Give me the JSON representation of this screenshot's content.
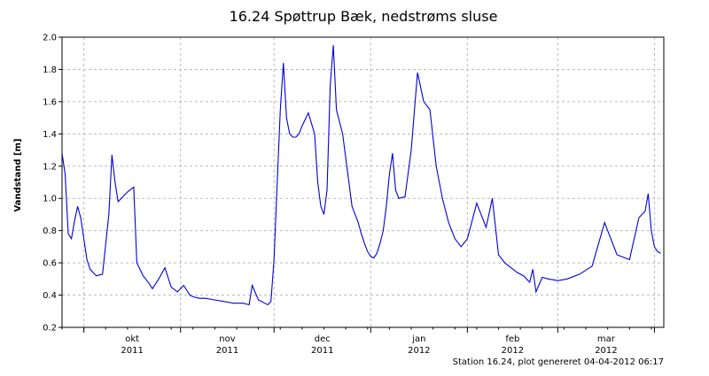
{
  "chart_data": {
    "type": "line",
    "title": "16.24 Spøttrup Bæk, nedstrøms sluse",
    "xlabel": "",
    "ylabel": "Vandstand [m]",
    "ylim": [
      0.2,
      2.0
    ],
    "yticks": [
      "0.2",
      "0.4",
      "0.6",
      "0.8",
      "1.0",
      "1.2",
      "1.4",
      "1.6",
      "1.8",
      "2.0"
    ],
    "xlim": [
      "2011-09-24",
      "2012-04-04"
    ],
    "grid": true,
    "x_labels": [
      {
        "month": "okt",
        "year": "2011"
      },
      {
        "month": "nov",
        "year": "2011"
      },
      {
        "month": "dec",
        "year": "2011"
      },
      {
        "month": "jan",
        "year": "2012"
      },
      {
        "month": "feb",
        "year": "2012"
      },
      {
        "month": "mar",
        "year": "2012"
      }
    ],
    "series_color": "#0000dd",
    "series": [
      {
        "x": [
          "2011-09-24",
          "2011-09-25",
          "2011-09-26",
          "2011-09-27",
          "2011-09-28",
          "2011-09-29",
          "2011-09-30",
          "2011-10-01",
          "2011-10-02",
          "2011-10-03",
          "2011-10-05",
          "2011-10-07",
          "2011-10-09",
          "2011-10-10",
          "2011-10-11",
          "2011-10-12",
          "2011-10-13",
          "2011-10-15",
          "2011-10-17",
          "2011-10-18",
          "2011-10-20",
          "2011-10-22",
          "2011-10-23",
          "2011-10-25",
          "2011-10-27",
          "2011-10-29",
          "2011-10-31",
          "2011-11-02",
          "2011-11-04",
          "2011-11-05",
          "2011-11-07",
          "2011-11-09",
          "2011-11-12",
          "2011-11-15",
          "2011-11-18",
          "2011-11-21",
          "2011-11-23",
          "2011-11-24",
          "2011-11-26",
          "2011-11-27",
          "2011-11-28",
          "2011-11-29",
          "2011-11-30",
          "2011-12-01",
          "2011-12-02",
          "2011-12-03",
          "2011-12-04",
          "2011-12-05",
          "2011-12-06",
          "2011-12-07",
          "2011-12-08",
          "2011-12-09",
          "2011-12-10",
          "2011-12-12",
          "2011-12-14",
          "2011-12-15",
          "2011-12-16",
          "2011-12-17",
          "2011-12-18",
          "2011-12-19",
          "2011-12-20",
          "2011-12-21",
          "2011-12-23",
          "2011-12-25",
          "2011-12-26",
          "2011-12-28",
          "2011-12-29",
          "2011-12-30",
          "2011-12-31",
          "2012-01-01",
          "2012-01-02",
          "2012-01-03",
          "2012-01-04",
          "2012-01-05",
          "2012-01-06",
          "2012-01-07",
          "2012-01-08",
          "2012-01-09",
          "2012-01-10",
          "2012-01-12",
          "2012-01-14",
          "2012-01-16",
          "2012-01-18",
          "2012-01-20",
          "2012-01-22",
          "2012-01-24",
          "2012-01-26",
          "2012-01-28",
          "2012-01-30",
          "2012-02-01",
          "2012-02-04",
          "2012-02-07",
          "2012-02-09",
          "2012-02-11",
          "2012-02-13",
          "2012-02-15",
          "2012-02-17",
          "2012-02-19",
          "2012-02-21",
          "2012-02-22",
          "2012-02-23",
          "2012-02-25",
          "2012-02-27",
          "2012-03-01",
          "2012-03-04",
          "2012-03-08",
          "2012-03-12",
          "2012-03-16",
          "2012-03-20",
          "2012-03-24",
          "2012-03-27",
          "2012-03-29",
          "2012-03-30",
          "2012-03-31",
          "2012-04-01",
          "2012-04-02",
          "2012-04-03"
        ],
        "y": [
          1.28,
          1.15,
          0.78,
          0.75,
          0.86,
          0.95,
          0.88,
          0.75,
          0.62,
          0.56,
          0.52,
          0.53,
          0.9,
          1.27,
          1.1,
          0.98,
          1.0,
          1.04,
          1.07,
          0.6,
          0.52,
          0.47,
          0.44,
          0.5,
          0.57,
          0.45,
          0.42,
          0.46,
          0.4,
          0.39,
          0.38,
          0.38,
          0.37,
          0.36,
          0.35,
          0.35,
          0.34,
          0.46,
          0.37,
          0.36,
          0.35,
          0.34,
          0.36,
          0.62,
          1.1,
          1.55,
          1.84,
          1.5,
          1.4,
          1.38,
          1.38,
          1.4,
          1.45,
          1.53,
          1.4,
          1.1,
          0.95,
          0.9,
          1.05,
          1.7,
          1.95,
          1.55,
          1.4,
          1.1,
          0.95,
          0.85,
          0.78,
          0.72,
          0.67,
          0.64,
          0.63,
          0.66,
          0.72,
          0.8,
          0.95,
          1.15,
          1.28,
          1.05,
          1.0,
          1.01,
          1.3,
          1.78,
          1.6,
          1.55,
          1.2,
          1.0,
          0.85,
          0.75,
          0.7,
          0.75,
          0.97,
          0.82,
          1.0,
          0.65,
          0.6,
          0.57,
          0.54,
          0.52,
          0.48,
          0.56,
          0.42,
          0.51,
          0.5,
          0.49,
          0.5,
          0.53,
          0.58,
          0.85,
          0.65,
          0.62,
          0.88,
          0.92,
          1.03,
          0.8,
          0.7,
          0.67,
          0.66
        ]
      }
    ],
    "footnote": "Station 16.24, plot genereret 04-04-2012 06:17"
  }
}
